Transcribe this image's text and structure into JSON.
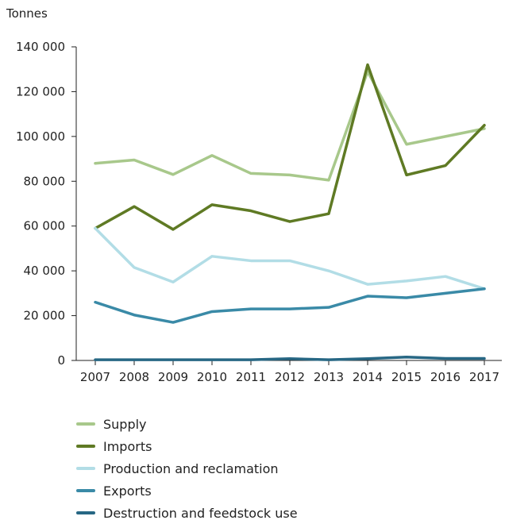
{
  "chart_data": {
    "type": "line",
    "title": "",
    "xlabel": "",
    "ylabel": "Tonnes",
    "x": [
      "2007",
      "2008",
      "2009",
      "2010",
      "2011",
      "2012",
      "2013",
      "2014",
      "2015",
      "2016",
      "2017"
    ],
    "ylim": [
      0,
      140000
    ],
    "yticks": [
      0,
      20000,
      40000,
      60000,
      80000,
      100000,
      120000,
      140000
    ],
    "ytick_labels": [
      "0",
      "20 000",
      "40 000",
      "60 000",
      "80 000",
      "100 000",
      "120 000",
      "140 000"
    ],
    "grid": false,
    "legend_position": "bottom-left",
    "series": [
      {
        "name": "Supply",
        "color": "#a8c88b",
        "values": [
          88000,
          89500,
          83000,
          91500,
          83500,
          82800,
          80500,
          129000,
          96500,
          100000,
          103500
        ]
      },
      {
        "name": "Imports",
        "color": "#5f7a24",
        "values": [
          59000,
          68700,
          58500,
          69500,
          66800,
          62000,
          65500,
          132000,
          82800,
          87000,
          105000
        ]
      },
      {
        "name": "Production and reclamation",
        "color": "#b2dde6",
        "values": [
          59000,
          41500,
          35000,
          46500,
          44500,
          44500,
          40000,
          34000,
          35500,
          37500,
          32000
        ]
      },
      {
        "name": "Exports",
        "color": "#3a8aa7",
        "values": [
          26000,
          20300,
          17000,
          21800,
          23000,
          23000,
          23700,
          28700,
          28000,
          30000,
          32000
        ]
      },
      {
        "name": "Destruction and feedstock use",
        "color": "#276784",
        "values": [
          300,
          300,
          300,
          300,
          300,
          800,
          300,
          800,
          1500,
          900,
          900
        ]
      }
    ]
  }
}
